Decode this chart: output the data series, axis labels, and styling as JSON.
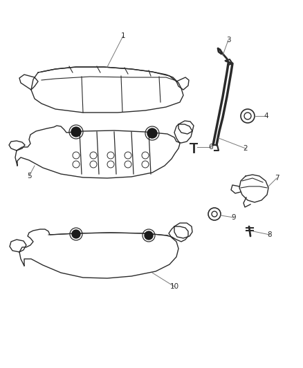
{
  "background_color": "#ffffff",
  "line_color": "#2a2a2a",
  "label_color": "#2a2a2a",
  "figsize": [
    4.38,
    5.33
  ],
  "dpi": 100
}
